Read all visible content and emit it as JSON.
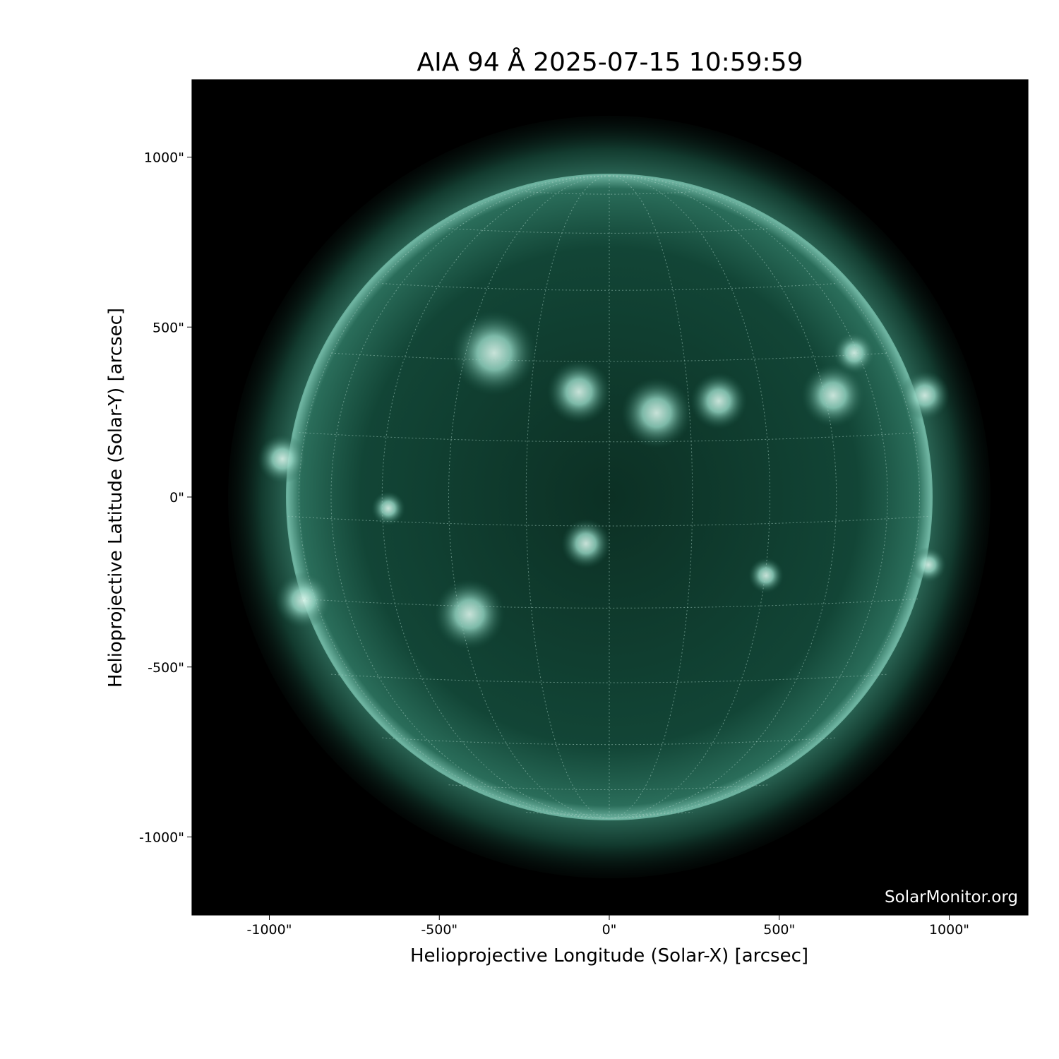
{
  "title": "AIA 94 Å 2025-07-15 10:59:59",
  "x_axis": {
    "label": "Helioprojective Longitude (Solar-X) [arcsec]",
    "ticks": [
      "-1000\"",
      "-500\"",
      "0\"",
      "500\"",
      "1000\""
    ],
    "tick_values": [
      -1000,
      -500,
      0,
      500,
      1000
    ]
  },
  "y_axis": {
    "label": "Helioprojective Latitude (Solar-Y) [arcsec]",
    "ticks": [
      "1000\"",
      "500\"",
      "0\"",
      "-500\"",
      "-1000\""
    ],
    "tick_values": [
      1000,
      500,
      0,
      -500,
      -1000
    ]
  },
  "watermark": "SolarMonitor.org",
  "colors": {
    "background": "#000000",
    "disk": "#0f3a2c",
    "limb": "#5fa894",
    "highlight": "#e8fff6"
  }
}
